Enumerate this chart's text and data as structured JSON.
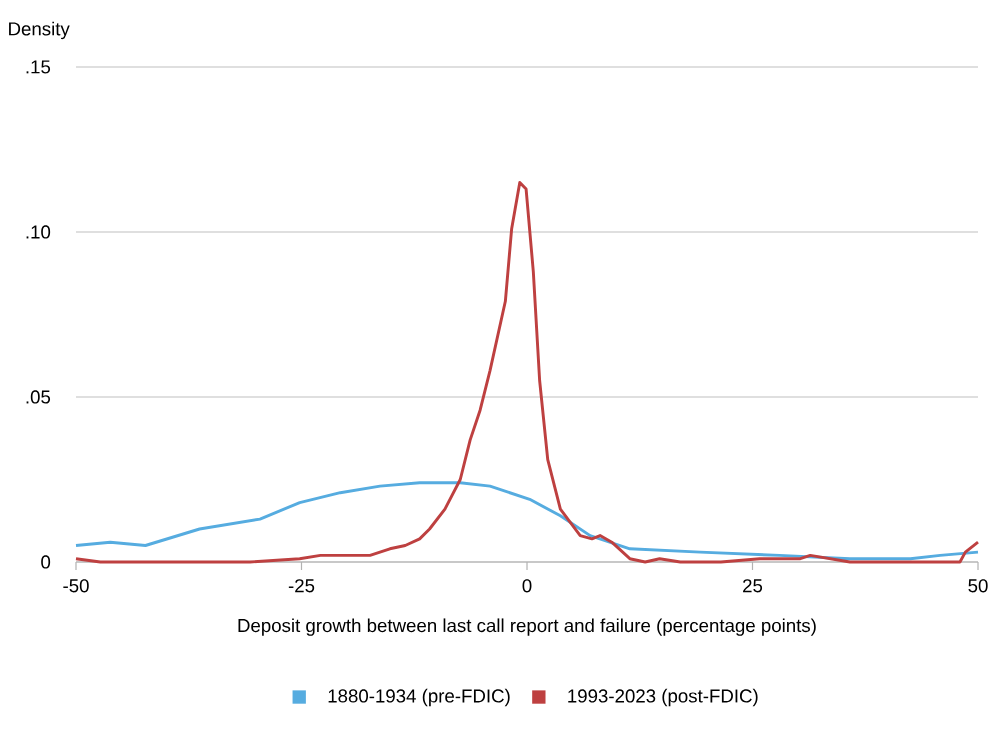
{
  "chart_data": {
    "type": "line",
    "ylabel": "Density",
    "xlabel": "Deposit growth between last call report and failure (percentage points)",
    "xlim": [
      -50,
      50
    ],
    "xticks": [
      -50,
      -25,
      0,
      25,
      50
    ],
    "ylim": [
      0,
      0.15
    ],
    "yticks": [
      {
        "value": 0,
        "label": "0"
      },
      {
        "value": 0.05,
        "label": ".05"
      },
      {
        "value": 0.1,
        "label": ".10"
      },
      {
        "value": 0.15,
        "label": ".15"
      }
    ],
    "grid": "y",
    "legend": "bottom",
    "line_style": "solid",
    "series": [
      {
        "name": "1880-1934 (pre-FDIC)",
        "color": "#56ace0",
        "x": [
          -50,
          -46.2,
          -42.3,
          -36.3,
          -29.6,
          -25.2,
          -20.7,
          -16.3,
          -11.9,
          -7.4,
          -4.1,
          0.3,
          3.7,
          7,
          11.4,
          19.2,
          28,
          35.8,
          42.5,
          45.8,
          50
        ],
        "values": [
          0.005,
          0.006,
          0.005,
          0.01,
          0.013,
          0.018,
          0.021,
          0.023,
          0.024,
          0.024,
          0.023,
          0.019,
          0.014,
          0.008,
          0.004,
          0.003,
          0.002,
          0.001,
          0.001,
          0.002,
          0.003
        ]
      },
      {
        "name": "1993-2023 (post-FDIC)",
        "color": "#be4040",
        "x": [
          -50,
          -47.3,
          -41.8,
          -36.3,
          -30.7,
          -25.2,
          -22.9,
          -19.6,
          -17.4,
          -15.2,
          -13.5,
          -11.9,
          -10.8,
          -9.1,
          -7.4,
          -6.3,
          -5.2,
          -4.1,
          -2.4,
          -1.7,
          -0.8,
          -0.1,
          0.7,
          1.4,
          2.3,
          3.7,
          5.9,
          7.2,
          8.1,
          9.4,
          11.4,
          13.1,
          14.7,
          17,
          21.5,
          25.8,
          30.3,
          31.4,
          33.6,
          35.8,
          43.6,
          46.9,
          48,
          48.6,
          50
        ],
        "values": [
          0.001,
          0,
          0,
          0,
          0,
          0.001,
          0.002,
          0.002,
          0.002,
          0.004,
          0.005,
          0.007,
          0.01,
          0.016,
          0.025,
          0.037,
          0.046,
          0.058,
          0.079,
          0.101,
          0.115,
          0.113,
          0.088,
          0.055,
          0.031,
          0.016,
          0.008,
          0.007,
          0.008,
          0.006,
          0.001,
          0,
          0.001,
          0,
          0,
          0.001,
          0.001,
          0.002,
          0.001,
          0,
          0,
          0,
          0,
          0.003,
          0.006
        ]
      }
    ]
  }
}
